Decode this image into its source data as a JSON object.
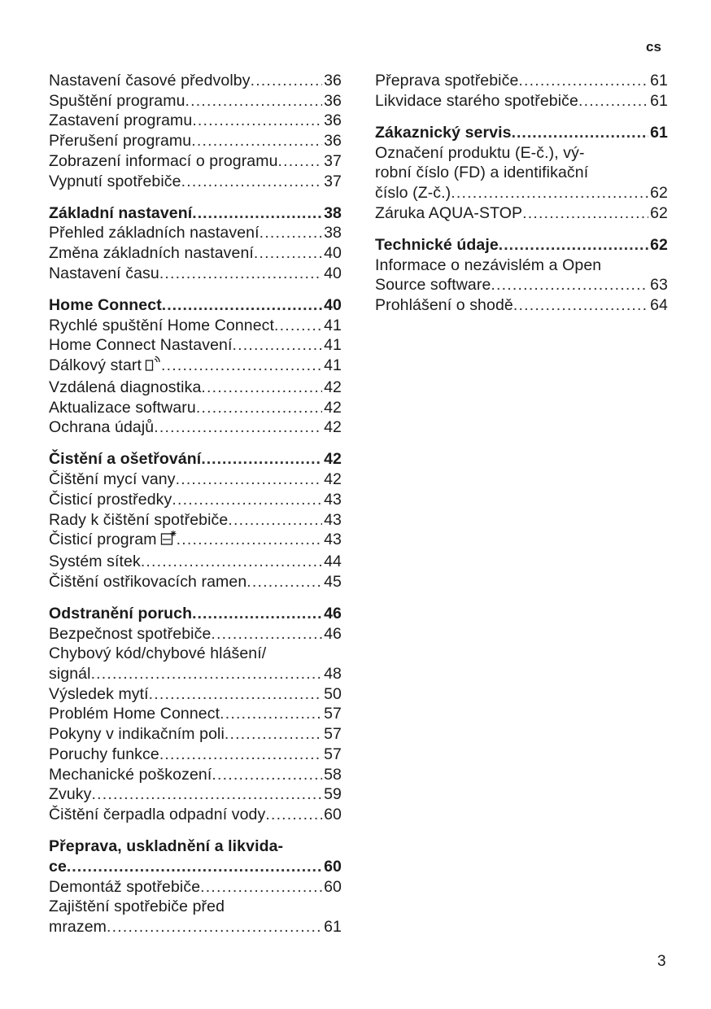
{
  "header": {
    "language": "cs"
  },
  "footer": {
    "page_number": "3"
  },
  "toc": {
    "left": [
      {
        "lines": [
          "Nastavení časové předvolby"
        ],
        "page": "36"
      },
      {
        "lines": [
          "Spuštění programu"
        ],
        "page": "36"
      },
      {
        "lines": [
          "Zastavení programu"
        ],
        "page": "36"
      },
      {
        "lines": [
          "Přerušení programu"
        ],
        "page": "36"
      },
      {
        "lines": [
          "Zobrazení informací o programu"
        ],
        "page": "37"
      },
      {
        "lines": [
          "Vypnutí spotřebiče"
        ],
        "page": "37"
      },
      {
        "lines": [
          "Základní nastavení"
        ],
        "page": "38",
        "bold": true,
        "gap": true
      },
      {
        "lines": [
          "Přehled základních nastavení"
        ],
        "page": "38"
      },
      {
        "lines": [
          "Změna základních nastavení"
        ],
        "page": "40"
      },
      {
        "lines": [
          "Nastavení času"
        ],
        "page": "40"
      },
      {
        "lines": [
          "Home Connect"
        ],
        "page": "40",
        "bold": true,
        "gap": true
      },
      {
        "lines": [
          "Rychlé spuštění Home Connect"
        ],
        "page": "41"
      },
      {
        "lines": [
          "Home Connect Nastavení"
        ],
        "page": "41"
      },
      {
        "lines": [
          "Dálkový start"
        ],
        "page": "41",
        "icon": "remote-start-icon"
      },
      {
        "lines": [
          "Vzdálená diagnostika"
        ],
        "page": "42"
      },
      {
        "lines": [
          "Aktualizace softwaru"
        ],
        "page": "42"
      },
      {
        "lines": [
          "Ochrana údajů"
        ],
        "page": "42"
      },
      {
        "lines": [
          "Čistění a ošetřování"
        ],
        "page": "42",
        "bold": true,
        "gap": true
      },
      {
        "lines": [
          "Čištění mycí vany"
        ],
        "page": "42"
      },
      {
        "lines": [
          "Čisticí prostředky"
        ],
        "page": "43"
      },
      {
        "lines": [
          "Rady k čištění spotřebiče"
        ],
        "page": "43"
      },
      {
        "lines": [
          "Čisticí program"
        ],
        "page": "43",
        "icon": "cleaning-program-icon"
      },
      {
        "lines": [
          "Systém sítek"
        ],
        "page": "44"
      },
      {
        "lines": [
          "Čištění ostřikovacích ramen"
        ],
        "page": "45"
      },
      {
        "lines": [
          "Odstranění poruch"
        ],
        "page": "46",
        "bold": true,
        "gap": true
      },
      {
        "lines": [
          "Bezpečnost spotřebiče"
        ],
        "page": "46"
      },
      {
        "lines": [
          "Chybový kód/chybové hlášení/",
          "signál"
        ],
        "page": "48"
      },
      {
        "lines": [
          "Výsledek mytí"
        ],
        "page": "50"
      },
      {
        "lines": [
          "Problém Home Connect"
        ],
        "page": "57"
      },
      {
        "lines": [
          "Pokyny v indikačním poli"
        ],
        "page": "57"
      },
      {
        "lines": [
          "Poruchy funkce"
        ],
        "page": "57"
      },
      {
        "lines": [
          "Mechanické poškození"
        ],
        "page": "58"
      },
      {
        "lines": [
          "Zvuky"
        ],
        "page": "59"
      },
      {
        "lines": [
          "Čištění čerpadla odpadní vody"
        ],
        "page": "60"
      },
      {
        "lines": [
          "Přeprava, uskladnění a likvida-",
          "ce"
        ],
        "page": "60",
        "bold": true,
        "gap": true
      },
      {
        "lines": [
          "Demontáž spotřebiče"
        ],
        "page": "60"
      },
      {
        "lines": [
          "Zajištění spotřebiče před",
          "mrazem"
        ],
        "page": "61"
      }
    ],
    "right": [
      {
        "lines": [
          "Přeprava spotřebiče"
        ],
        "page": "61"
      },
      {
        "lines": [
          "Likvidace starého spotřebiče"
        ],
        "page": "61"
      },
      {
        "lines": [
          "Zákaznický servis"
        ],
        "page": "61",
        "bold": true,
        "gap": true
      },
      {
        "lines": [
          "Označení produktu (E-č.), vý-",
          "robní číslo (FD) a identifikační",
          "číslo (Z-č.)"
        ],
        "page": "62"
      },
      {
        "lines": [
          "Záruka AQUA-STOP"
        ],
        "page": "62"
      },
      {
        "lines": [
          "Technické údaje"
        ],
        "page": "62",
        "bold": true,
        "gap": true
      },
      {
        "lines": [
          "Informace o nezávislém a Open",
          "Source software"
        ],
        "page": "63"
      },
      {
        "lines": [
          "Prohlášení o shodě"
        ],
        "page": "64"
      }
    ]
  }
}
